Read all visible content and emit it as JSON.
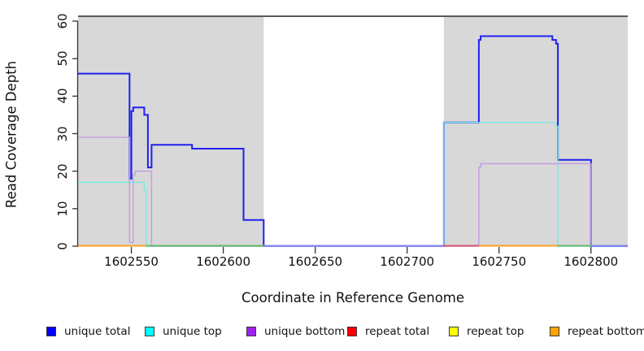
{
  "chart_data": {
    "type": "line",
    "title": "",
    "xlabel": "Coordinate in Reference Genome",
    "ylabel": "Read Coverage Depth",
    "xlim": [
      1602521,
      1602820
    ],
    "ylim": [
      0,
      60
    ],
    "x_ticks": [
      1602550,
      1602600,
      1602650,
      1602700,
      1602750,
      1602800
    ],
    "y_ticks": [
      0,
      10,
      20,
      30,
      40,
      50,
      60
    ],
    "grid": false,
    "legend_position": "bottom",
    "shaded_regions": [
      {
        "name": "repeat-region-left",
        "x0": 1602521,
        "x1": 1602622,
        "color": "#d8d8d8"
      },
      {
        "name": "repeat-region-right",
        "x0": 1602720,
        "x1": 1602820,
        "color": "#d8d8d8"
      }
    ],
    "series": [
      {
        "name": "unique total",
        "color": "#2020ee",
        "width": 2,
        "points": [
          [
            1602521,
            46
          ],
          [
            1602549,
            46
          ],
          [
            1602549,
            18
          ],
          [
            1602550,
            18
          ],
          [
            1602550,
            36
          ],
          [
            1602551,
            36
          ],
          [
            1602551,
            37
          ],
          [
            1602557,
            37
          ],
          [
            1602557,
            35
          ],
          [
            1602559,
            35
          ],
          [
            1602559,
            21
          ],
          [
            1602561,
            21
          ],
          [
            1602561,
            27
          ],
          [
            1602583,
            27
          ],
          [
            1602583,
            26
          ],
          [
            1602611,
            26
          ],
          [
            1602611,
            7
          ],
          [
            1602622,
            7
          ],
          [
            1602622,
            0
          ],
          [
            1602720,
            0
          ],
          [
            1602720,
            33
          ],
          [
            1602739,
            33
          ],
          [
            1602739,
            55
          ],
          [
            1602740,
            55
          ],
          [
            1602740,
            56
          ],
          [
            1602779,
            56
          ],
          [
            1602779,
            55
          ],
          [
            1602781,
            55
          ],
          [
            1602781,
            54
          ],
          [
            1602782,
            54
          ],
          [
            1602782,
            23
          ],
          [
            1602800,
            23
          ],
          [
            1602800,
            0
          ],
          [
            1602820,
            0
          ]
        ]
      },
      {
        "name": "unique top",
        "color": "#7ce8e4",
        "width": 1.4,
        "points": [
          [
            1602521,
            17
          ],
          [
            1602557,
            17
          ],
          [
            1602557,
            15
          ],
          [
            1602558,
            15
          ],
          [
            1602558,
            0
          ],
          [
            1602720,
            0
          ],
          [
            1602720,
            33
          ],
          [
            1602781,
            33
          ],
          [
            1602781,
            32
          ],
          [
            1602782,
            32
          ],
          [
            1602782,
            0
          ],
          [
            1602820,
            0
          ]
        ]
      },
      {
        "name": "unique bottom",
        "color": "#c49ae0",
        "width": 1.4,
        "points": [
          [
            1602521,
            29
          ],
          [
            1602549,
            29
          ],
          [
            1602549,
            1
          ],
          [
            1602551,
            1
          ],
          [
            1602551,
            19
          ],
          [
            1602552,
            19
          ],
          [
            1602552,
            20
          ],
          [
            1602561,
            20
          ],
          [
            1602561,
            0
          ],
          [
            1602739,
            0
          ],
          [
            1602739,
            21
          ],
          [
            1602740,
            21
          ],
          [
            1602740,
            22
          ],
          [
            1602800,
            22
          ],
          [
            1602800,
            0
          ]
        ]
      },
      {
        "name": "repeat total",
        "color": "#d6536e",
        "width": 2,
        "points": [
          [
            1602521,
            0
          ],
          [
            1602820,
            0
          ]
        ]
      },
      {
        "name": "repeat top",
        "color": "#ffff00",
        "width": 2,
        "points": [
          [
            1602521,
            0
          ],
          [
            1602820,
            0
          ]
        ]
      },
      {
        "name": "repeat bottom",
        "color": "#ffa01e",
        "width": 2,
        "points": [
          [
            1602521,
            0
          ],
          [
            1602820,
            0
          ]
        ]
      }
    ],
    "zero_line_segments": [
      {
        "x0": 1602521,
        "x1": 1602558,
        "color": "#ffa01e"
      },
      {
        "x0": 1602558,
        "x1": 1602622,
        "color": "#63bb6a"
      },
      {
        "x0": 1602622,
        "x1": 1602720,
        "color": "#8b86f0"
      },
      {
        "x0": 1602720,
        "x1": 1602739,
        "color": "#d6536e"
      },
      {
        "x0": 1602739,
        "x1": 1602782,
        "color": "#ffa01e"
      },
      {
        "x0": 1602782,
        "x1": 1602800,
        "color": "#63bb6a"
      },
      {
        "x0": 1602800,
        "x1": 1602820,
        "color": "#8b86f0"
      }
    ],
    "legend": [
      {
        "label": "unique total",
        "color": "#0000ff"
      },
      {
        "label": "unique top",
        "color": "#00ffff"
      },
      {
        "label": "unique bottom",
        "color": "#a020f0"
      },
      {
        "label": "repeat total",
        "color": "#ff0000"
      },
      {
        "label": "repeat top",
        "color": "#ffff00"
      },
      {
        "label": "repeat bottom",
        "color": "#ffa500"
      }
    ]
  },
  "colors": {
    "shade_gray": "#d8d8d8",
    "top_border": "#5a5a5a",
    "axis": "#333333"
  }
}
